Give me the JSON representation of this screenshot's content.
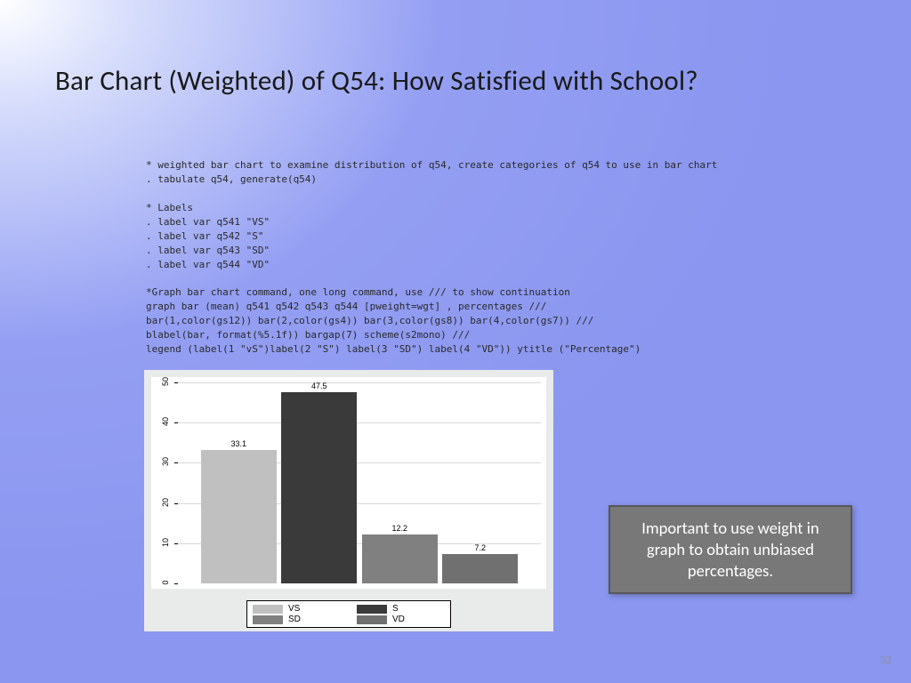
{
  "title": "Bar Chart (Weighted) of Q54: How Satisfied with School?",
  "code": "* weighted bar chart to examine distribution of q54, create categories of q54 to use in bar chart\n. tabulate q54, generate(q54)\n\n* Labels\n. label var q541 \"VS\"\n. label var q542 \"S\"\n. label var q543 \"SD\"\n. label var q544 \"VD\"\n\n*Graph bar chart command, one long command, use /// to show continuation\ngraph bar (mean) q541 q542 q543 q544 [pweight=wgt] , percentages ///\nbar(1,color(gs12)) bar(2,color(gs4)) bar(3,color(gs8)) bar(4,color(gs7)) ///\nblabel(bar, format(%5.1f)) bargap(7) scheme(s2mono) ///\nlegend (label(1 \"vS\")label(2 \"S\") label(3 \"SD\") label(4 \"VD\")) ytitle (\"Percentage\")",
  "chart": {
    "type": "bar",
    "ylim": [
      0,
      50
    ],
    "ytick_step": 10,
    "background_color": "#e9eaea",
    "plot_bg": "#ffffff",
    "grid_color": "#d8d8d8",
    "bar_gap_pct": 7,
    "label_font_size": 9,
    "series": [
      {
        "key": "VS",
        "value": 33.1,
        "color": "#c0c0c0"
      },
      {
        "key": "S",
        "value": 47.5,
        "color": "#3a3a3a"
      },
      {
        "key": "SD",
        "value": 12.2,
        "color": "#808080"
      },
      {
        "key": "VD",
        "value": 7.2,
        "color": "#707070"
      }
    ],
    "legend": [
      {
        "label": "VS",
        "color": "#c0c0c0"
      },
      {
        "label": "S",
        "color": "#3a3a3a"
      },
      {
        "label": "SD",
        "color": "#808080"
      },
      {
        "label": "VD",
        "color": "#707070"
      }
    ]
  },
  "callout": "Important to use weight in graph to obtain unbiased percentages.",
  "page_number": "32"
}
